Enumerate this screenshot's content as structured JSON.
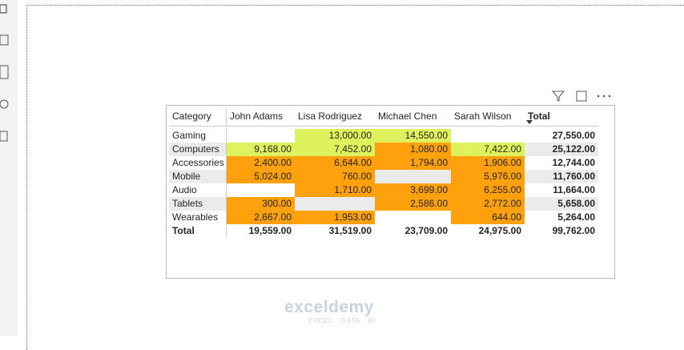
{
  "table": {
    "headers": [
      "Category",
      "John Adams",
      "Lisa Rodriguez",
      "Michael Chen",
      "Sarah Wilson",
      "Total"
    ],
    "rows": [
      {
        "category": "Gaming",
        "cells": [
          {
            "text": null,
            "color": null
          },
          {
            "text": "13,000.00",
            "color": "#ddf25c"
          },
          {
            "text": "14,550.00",
            "color": "#ddf25c"
          },
          {
            "text": null,
            "color": null
          },
          {
            "text": "27,550.00",
            "color": null
          }
        ]
      },
      {
        "category": "Computers",
        "cells": [
          {
            "text": "9,168.00",
            "color": "#ddf25c"
          },
          {
            "text": "7,452.00",
            "color": "#ddf25c"
          },
          {
            "text": "1,080.00",
            "color": "#ffa10c"
          },
          {
            "text": "7,422.00",
            "color": "#ddf25c"
          },
          {
            "text": "25,122.00",
            "color": null
          }
        ]
      },
      {
        "category": "Accessories",
        "cells": [
          {
            "text": "2,400.00",
            "color": "#ffa10c"
          },
          {
            "text": "6,644.00",
            "color": "#ffa10c"
          },
          {
            "text": "1,794.00",
            "color": "#ffa10c"
          },
          {
            "text": "1,906.00",
            "color": "#ffa10c"
          },
          {
            "text": "12,744.00",
            "color": null
          }
        ]
      },
      {
        "category": "Mobile",
        "cells": [
          {
            "text": "5,024.00",
            "color": "#ffa10c"
          },
          {
            "text": "760.00",
            "color": "#ffa10c"
          },
          {
            "text": null,
            "color": null
          },
          {
            "text": "5,976.00",
            "color": "#ffa10c"
          },
          {
            "text": "11,760.00",
            "color": null
          }
        ]
      },
      {
        "category": "Audio",
        "cells": [
          {
            "text": null,
            "color": null
          },
          {
            "text": "1,710.00",
            "color": "#ffa10c"
          },
          {
            "text": "3,699.00",
            "color": "#ffa10c"
          },
          {
            "text": "6,255.00",
            "color": "#ffa10c"
          },
          {
            "text": "11,664.00",
            "color": null
          }
        ]
      },
      {
        "category": "Tablets",
        "cells": [
          {
            "text": "300.00",
            "color": "#ffa10c"
          },
          {
            "text": null,
            "color": null
          },
          {
            "text": "2,586.00",
            "color": "#ffa10c"
          },
          {
            "text": "2,772.00",
            "color": "#ffa10c"
          },
          {
            "text": "5,658.00",
            "color": null
          }
        ]
      },
      {
        "category": "Wearables",
        "cells": [
          {
            "text": "2,667.00",
            "color": "#ffa10c"
          },
          {
            "text": "1,953.00",
            "color": "#ffa10c"
          },
          {
            "text": null,
            "color": null
          },
          {
            "text": "644.00",
            "color": "#ffa10c"
          },
          {
            "text": "5,264.00",
            "color": null
          }
        ]
      }
    ],
    "total": {
      "category": "Total",
      "cells": [
        "19,559.00",
        "31,519.00",
        "23,709.00",
        "24,975.00",
        "99,762.00"
      ]
    }
  },
  "watermark": {
    "name": "exceldemy",
    "tagline": "EXCEL · DATA · BI"
  }
}
